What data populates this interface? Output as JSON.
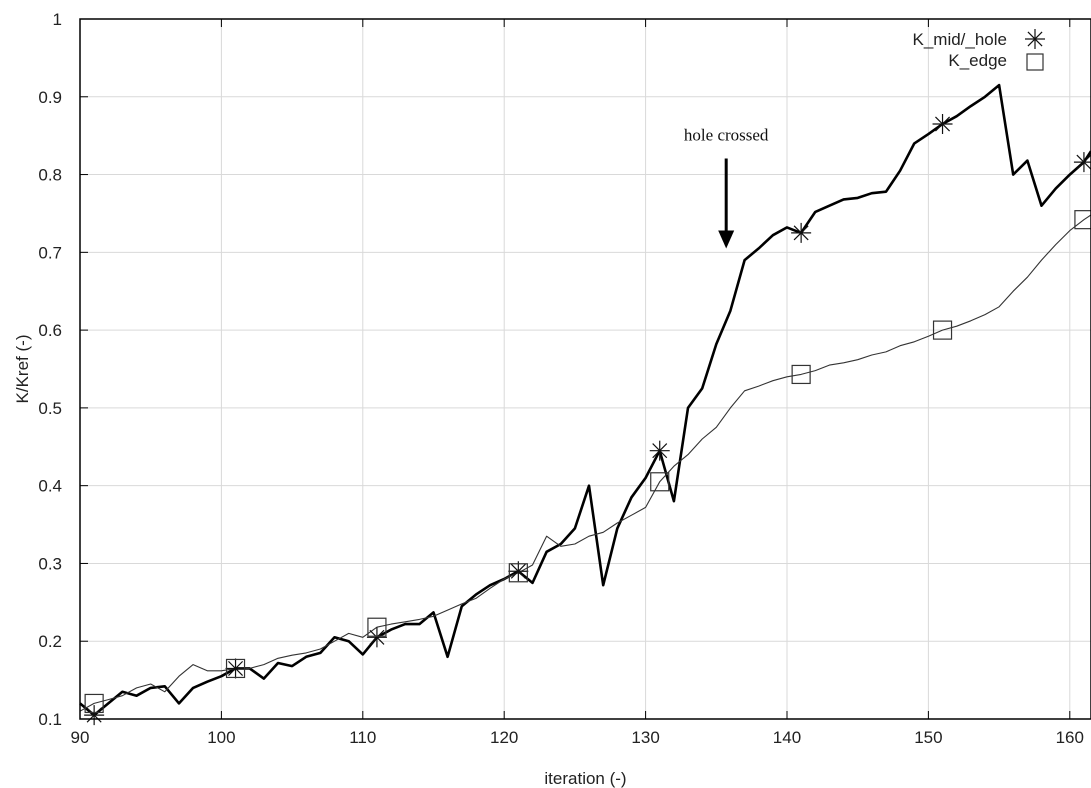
{
  "chart_data": {
    "type": "line",
    "title": "",
    "xlabel": "iteration (-)",
    "ylabel": "K/Kref (-)",
    "xlim": [
      90,
      161.5
    ],
    "ylim": [
      0.1,
      1.0
    ],
    "xticks": [
      90,
      100,
      110,
      120,
      130,
      140,
      150,
      160
    ],
    "yticks": [
      0.1,
      0.2,
      0.3,
      0.4,
      0.5,
      0.6,
      0.7,
      0.8,
      0.9,
      1.0
    ],
    "xtick_labels": [
      "90",
      "100",
      "110",
      "120",
      "130",
      "140",
      "150",
      "160"
    ],
    "ytick_labels": [
      "0.1",
      "0.2",
      "0.3",
      "0.4",
      "0.5",
      "0.6",
      "0.7",
      "0.8",
      "0.9",
      "1"
    ],
    "grid": true,
    "legend_position": "top-right",
    "series": [
      {
        "name": "K_mid/_hole",
        "marker": "asterisk",
        "line": "thick",
        "x": [
          90,
          91,
          92,
          93,
          94,
          95,
          96,
          97,
          98,
          99,
          100,
          101,
          102,
          103,
          104,
          105,
          106,
          107,
          108,
          109,
          110,
          111,
          112,
          113,
          114,
          115,
          116,
          117,
          118,
          119,
          120,
          121,
          122,
          123,
          124,
          125,
          126,
          127,
          128,
          129,
          130,
          131,
          132,
          133,
          134,
          135,
          136,
          137,
          138,
          139,
          140,
          141,
          142,
          143,
          144,
          145,
          146,
          147,
          148,
          149,
          150,
          151,
          152,
          153,
          154,
          155,
          156,
          157,
          158,
          159,
          160,
          161,
          161.5
        ],
        "y": [
          0.12,
          0.105,
          0.12,
          0.135,
          0.13,
          0.14,
          0.142,
          0.12,
          0.14,
          0.148,
          0.155,
          0.165,
          0.165,
          0.152,
          0.172,
          0.168,
          0.18,
          0.185,
          0.205,
          0.2,
          0.183,
          0.205,
          0.215,
          0.222,
          0.222,
          0.237,
          0.18,
          0.245,
          0.26,
          0.272,
          0.28,
          0.29,
          0.275,
          0.315,
          0.325,
          0.345,
          0.4,
          0.272,
          0.345,
          0.385,
          0.41,
          0.445,
          0.38,
          0.5,
          0.525,
          0.582,
          0.625,
          0.69,
          0.705,
          0.722,
          0.732,
          0.725,
          0.752,
          0.76,
          0.768,
          0.77,
          0.776,
          0.778,
          0.805,
          0.84,
          0.852,
          0.865,
          0.875,
          0.888,
          0.9,
          0.915,
          0.8,
          0.818,
          0.76,
          0.782,
          0.8,
          0.816,
          0.83
        ],
        "marker_x": [
          91,
          101,
          111,
          121,
          131,
          141,
          151,
          161
        ]
      },
      {
        "name": "K_edge",
        "marker": "square",
        "line": "thin",
        "x": [
          90,
          91,
          92,
          93,
          94,
          95,
          96,
          97,
          98,
          99,
          100,
          101,
          102,
          103,
          104,
          105,
          106,
          107,
          108,
          109,
          110,
          111,
          112,
          113,
          114,
          115,
          116,
          117,
          118,
          119,
          120,
          121,
          122,
          123,
          124,
          125,
          126,
          127,
          128,
          129,
          130,
          131,
          132,
          133,
          134,
          135,
          136,
          137,
          138,
          139,
          140,
          141,
          142,
          143,
          144,
          145,
          146,
          147,
          148,
          149,
          150,
          151,
          152,
          153,
          154,
          155,
          156,
          157,
          158,
          159,
          160,
          161,
          161.5
        ],
        "y": [
          0.11,
          0.12,
          0.125,
          0.13,
          0.14,
          0.145,
          0.135,
          0.155,
          0.17,
          0.162,
          0.162,
          0.165,
          0.165,
          0.17,
          0.178,
          0.182,
          0.185,
          0.19,
          0.2,
          0.21,
          0.205,
          0.218,
          0.222,
          0.225,
          0.228,
          0.232,
          0.24,
          0.248,
          0.255,
          0.268,
          0.28,
          0.288,
          0.298,
          0.335,
          0.322,
          0.325,
          0.335,
          0.34,
          0.352,
          0.362,
          0.372,
          0.405,
          0.425,
          0.44,
          0.46,
          0.475,
          0.5,
          0.522,
          0.528,
          0.535,
          0.54,
          0.543,
          0.548,
          0.555,
          0.558,
          0.562,
          0.568,
          0.572,
          0.58,
          0.585,
          0.592,
          0.6,
          0.605,
          0.612,
          0.62,
          0.63,
          0.65,
          0.668,
          0.69,
          0.71,
          0.728,
          0.742,
          0.748
        ],
        "marker_x": [
          91,
          101,
          111,
          121,
          131,
          141,
          151,
          161
        ]
      }
    ],
    "annotations": [
      {
        "text": "hole crossed",
        "arrow_tip_x": 135.7,
        "arrow_tip_y": 0.705
      }
    ]
  }
}
